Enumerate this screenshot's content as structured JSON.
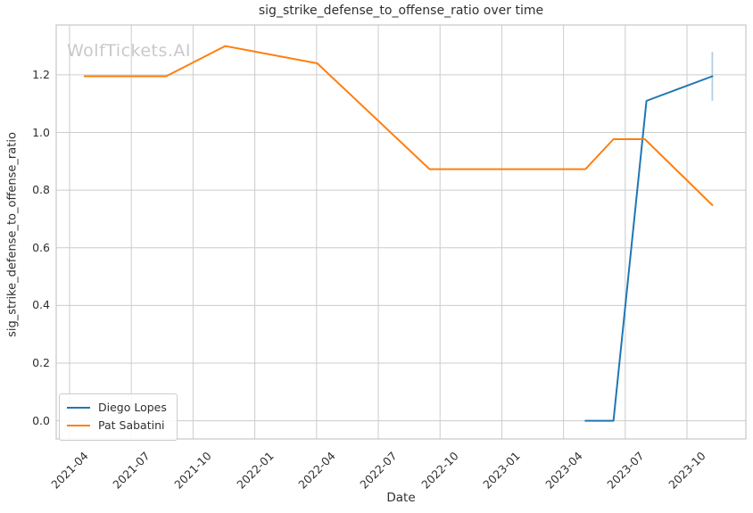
{
  "chart_data": {
    "type": "line",
    "title": "sig_strike_defense_to_offense_ratio over time",
    "xlabel": "Date",
    "ylabel": "sig_strike_defense_to_offense_ratio",
    "watermark": "WolfTickets.AI",
    "grid": true,
    "legend_position": "lower left",
    "xtick_labels": [
      "2021-04",
      "2021-07",
      "2021-10",
      "2022-01",
      "2022-04",
      "2022-07",
      "2022-10",
      "2023-01",
      "2023-04",
      "2023-07",
      "2023-10"
    ],
    "yticks": [
      0.0,
      0.2,
      0.4,
      0.6,
      0.8,
      1.0,
      1.2
    ],
    "xlim_months_since_2021_01": [
      2.35,
      35.86
    ],
    "ylim": [
      -0.063,
      1.373
    ],
    "colors": {
      "grid": "#cccccc",
      "spine": "#c7c7c7",
      "text": "#303030",
      "watermark": "#c9c9c9",
      "error_bar": "#b1cfe5"
    },
    "series": [
      {
        "name": "Diego Lopes",
        "color": "#1f77b4",
        "points": [
          {
            "date": "2023-05-03",
            "value": 0.0
          },
          {
            "date": "2023-06-14",
            "value": 0.0
          },
          {
            "date": "2023-08-02",
            "value": 1.11
          },
          {
            "date": "2023-11-08",
            "value": 1.195
          }
        ],
        "error_bar": {
          "date": "2023-11-08",
          "low": 1.11,
          "high": 1.28
        }
      },
      {
        "name": "Pat Sabatini",
        "color": "#ff7f0e",
        "points": [
          {
            "date": "2021-04-23",
            "value": 1.195
          },
          {
            "date": "2021-08-22",
            "value": 1.195
          },
          {
            "date": "2021-11-18",
            "value": 1.3
          },
          {
            "date": "2022-04-02",
            "value": 1.24
          },
          {
            "date": "2022-09-16",
            "value": 0.873
          },
          {
            "date": "2023-05-03",
            "value": 0.873
          },
          {
            "date": "2023-06-14",
            "value": 0.977
          },
          {
            "date": "2023-07-30",
            "value": 0.977
          },
          {
            "date": "2023-11-08",
            "value": 0.748
          }
        ]
      }
    ]
  }
}
